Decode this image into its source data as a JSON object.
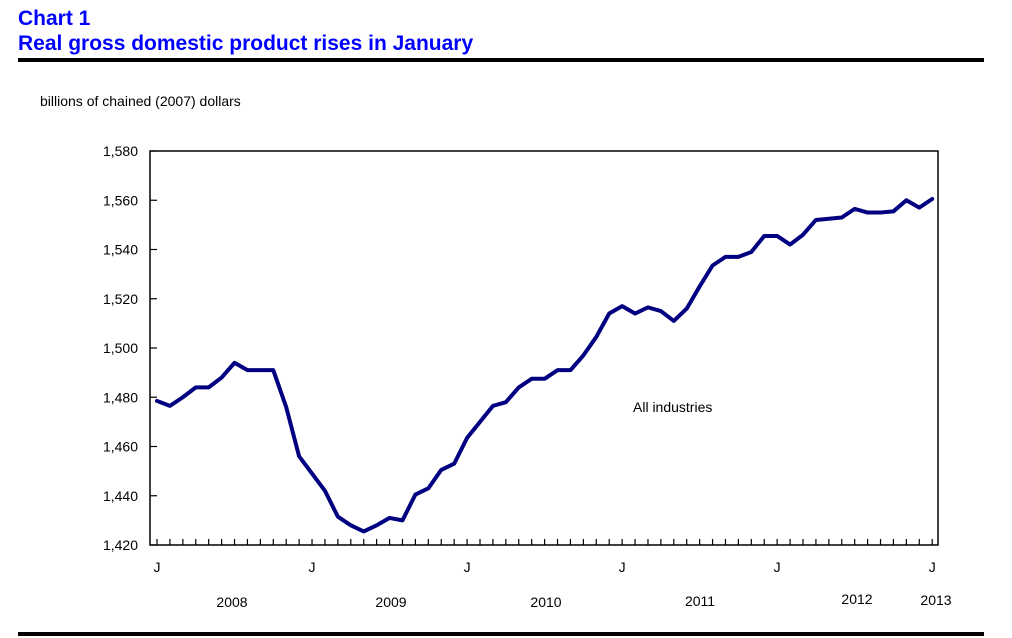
{
  "header": {
    "chart_number": "Chart 1",
    "title": "Real gross domestic product rises in January"
  },
  "chart_data": {
    "type": "line",
    "title": "Real gross domestic product rises in January",
    "ylabel": "billions of chained (2007) dollars",
    "xlabel": "",
    "ylim": [
      1420,
      1580
    ],
    "yticks": [
      1420,
      1440,
      1460,
      1480,
      1500,
      1520,
      1540,
      1560,
      1580
    ],
    "ytick_labels": [
      "1,420",
      "1,440",
      "1,460",
      "1,480",
      "1,500",
      "1,520",
      "1,540",
      "1,560",
      "1,580"
    ],
    "grid": false,
    "x_period": "monthly, January 2008 to January 2013",
    "x_month_tick_label": "J",
    "x_month_tick_positions": [
      0,
      12,
      24,
      36,
      48,
      60
    ],
    "year_labels": [
      "2008",
      "2009",
      "2010",
      "2011",
      "2012",
      "2013"
    ],
    "annotation": "All industries",
    "series": [
      {
        "name": "All industries",
        "color": "#000080",
        "values": [
          1478.5,
          1476.5,
          1480,
          1484,
          1484,
          1488,
          1494,
          1491,
          1491,
          1491,
          1476,
          1456,
          1449,
          1442,
          1431.5,
          1428,
          1425.5,
          1428,
          1431,
          1430,
          1440.5,
          1443,
          1450.5,
          1453,
          1463.5,
          1470,
          1476.5,
          1478,
          1484,
          1487.5,
          1487.5,
          1491,
          1491,
          1497,
          1504.5,
          1514,
          1517,
          1514,
          1516.5,
          1515,
          1511,
          1516,
          1525,
          1533.5,
          1537,
          1537,
          1539,
          1545.5,
          1545.5,
          1542,
          1546,
          1552,
          1552.5,
          1553,
          1556.5,
          1555,
          1555,
          1555.5,
          1560,
          1557,
          1560.5
        ]
      }
    ]
  }
}
